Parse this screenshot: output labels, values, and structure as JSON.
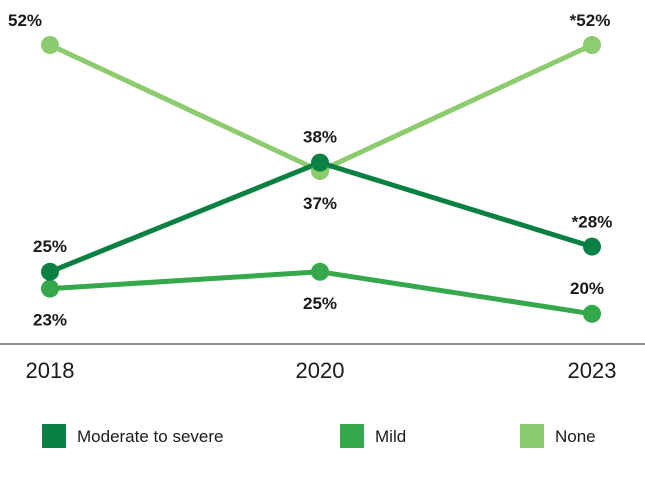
{
  "chart_data": {
    "type": "line",
    "title": "",
    "xlabel": "",
    "ylabel": "",
    "x": [
      "2018",
      "2020",
      "2023"
    ],
    "ylim": [
      0,
      60
    ],
    "grid": false,
    "legend_position": "bottom",
    "series": [
      {
        "name": "Moderate to severe",
        "color": "#0b8043",
        "values": [
          25,
          38,
          28
        ],
        "labels": [
          "25%",
          "38%",
          "*28%"
        ]
      },
      {
        "name": "Mild",
        "color": "#34a84a",
        "values": [
          23,
          25,
          20
        ],
        "labels": [
          "23%",
          "25%",
          "20%"
        ]
      },
      {
        "name": "None",
        "color": "#8ccb6e",
        "values": [
          52,
          37,
          52
        ],
        "labels": [
          "52%",
          "37%",
          "*52%"
        ]
      }
    ]
  }
}
